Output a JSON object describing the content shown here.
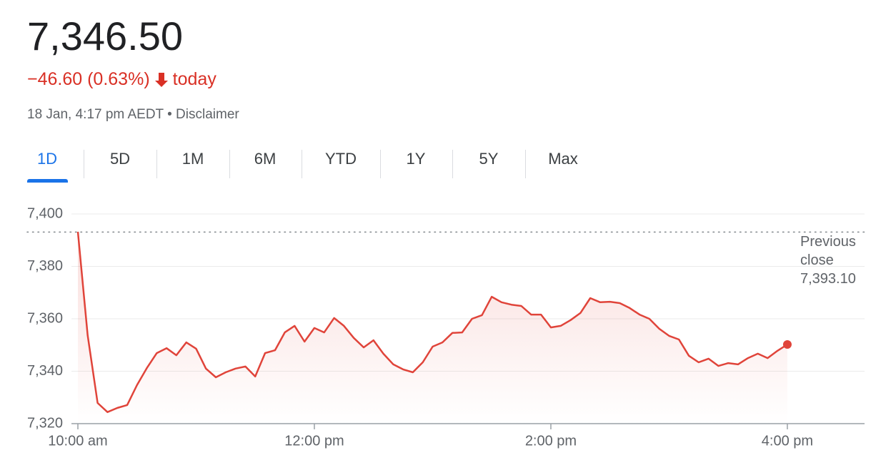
{
  "header": {
    "price": "7,346.50",
    "change": "−46.60 (0.63%)",
    "change_period": "today",
    "timestamp": "18 Jan, 4:17 pm AEDT",
    "separator": "•",
    "disclaimer": "Disclaimer",
    "tabs": [
      "1D",
      "5D",
      "1M",
      "6M",
      "YTD",
      "1Y",
      "5Y",
      "Max"
    ],
    "selected_tab": 0
  },
  "chart_data": {
    "type": "line",
    "color": "#e0443a",
    "grid": true,
    "reference": {
      "label": "Previous close",
      "value": {
        "value": 7393.1,
        "label": "7,393.10"
      }
    },
    "xlim": [
      9.571,
      16.653
    ],
    "ylim": [
      7320,
      7400
    ],
    "xticks": [
      {
        "value": 10,
        "label": "10:00 am"
      },
      {
        "value": 12,
        "label": "12:00 pm"
      },
      {
        "value": 14,
        "label": "2:00 pm"
      },
      {
        "value": 16,
        "label": "4:00 pm"
      }
    ],
    "yticks": [
      {
        "value": 7320,
        "label": "7,320"
      },
      {
        "value": 7340,
        "label": "7,340"
      },
      {
        "value": 7360,
        "label": "7,360"
      },
      {
        "value": 7380,
        "label": "7,380"
      },
      {
        "value": 7400,
        "label": "7,400"
      }
    ],
    "x": [
      10,
      10.083,
      10.167,
      10.25,
      10.333,
      10.417,
      10.5,
      10.583,
      10.667,
      10.75,
      10.833,
      10.917,
      11,
      11.083,
      11.167,
      11.25,
      11.333,
      11.417,
      11.5,
      11.583,
      11.667,
      11.75,
      11.833,
      11.917,
      12,
      12.083,
      12.167,
      12.25,
      12.333,
      12.417,
      12.5,
      12.583,
      12.667,
      12.75,
      12.833,
      12.917,
      13,
      13.083,
      13.167,
      13.25,
      13.333,
      13.417,
      13.5,
      13.583,
      13.667,
      13.75,
      13.833,
      13.917,
      14,
      14.083,
      14.167,
      14.25,
      14.333,
      14.417,
      14.5,
      14.583,
      14.667,
      14.75,
      14.833,
      14.917,
      15,
      15.083,
      15.167,
      15.25,
      15.333,
      15.417,
      15.5,
      15.583,
      15.667,
      15.75,
      15.833,
      15.917,
      16
    ],
    "values": [
      7393.2,
      7353.7,
      7327.9,
      7324.4,
      7326,
      7327.1,
      7334.7,
      7341.2,
      7346.9,
      7348.8,
      7346.1,
      7351,
      7348.6,
      7341,
      7337.7,
      7339.6,
      7341,
      7341.8,
      7338,
      7346.9,
      7348,
      7354.8,
      7357.3,
      7351.3,
      7356.5,
      7354.8,
      7360.3,
      7357.3,
      7352.7,
      7349.1,
      7351.8,
      7346.7,
      7342.6,
      7340.7,
      7339.6,
      7343.4,
      7349.4,
      7351,
      7354.6,
      7354.8,
      7360,
      7361.4,
      7368.4,
      7366.3,
      7365.4,
      7364.9,
      7361.6,
      7361.6,
      7356.7,
      7357.3,
      7359.5,
      7362.2,
      7367.9,
      7366.3,
      7366.5,
      7366,
      7364.1,
      7361.6,
      7360,
      7356.2,
      7353.5,
      7352.1,
      7345.9,
      7343.4,
      7344.8,
      7342,
      7343.1,
      7342.6,
      7345,
      7346.7,
      7345,
      7347.8,
      7350.2
    ]
  }
}
